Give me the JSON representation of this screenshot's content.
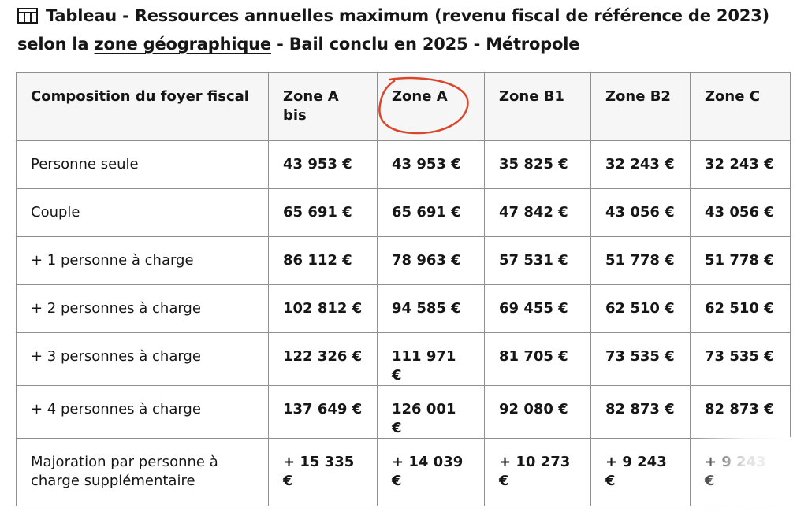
{
  "title": {
    "prefix": "Tableau - Ressources annuelles maximum (revenu fiscal de référence de 2023) selon la",
    "link": "zone géographique",
    "suffix": "- Bail conclu en 2025 - Métropole"
  },
  "table": {
    "headers": [
      "Composition du foyer fiscal",
      "Zone A bis",
      "Zone A",
      "Zone B1",
      "Zone B2",
      "Zone C"
    ],
    "rows": [
      [
        "Personne seule",
        "43 953 €",
        "43 953 €",
        "35 825 €",
        "32 243 €",
        "32 243 €"
      ],
      [
        "Couple",
        "65 691 €",
        "65 691 €",
        "47 842 €",
        "43 056 €",
        "43 056 €"
      ],
      [
        "+ 1 personne à charge",
        "86 112 €",
        "78 963 €",
        "57 531 €",
        "51 778 €",
        "51 778 €"
      ],
      [
        "+ 2 personnes à charge",
        "102 812 €",
        "94 585 €",
        "69 455 €",
        "62 510 €",
        "62 510 €"
      ],
      [
        "+ 3 personnes à charge",
        "122 326 €",
        "111 971 €",
        "81 705 €",
        "73 535 €",
        "73 535 €"
      ],
      [
        "+ 4 personnes à charge",
        "137 649 €",
        "126 001 €",
        "92 080 €",
        "82 873 €",
        "82 873 €"
      ],
      [
        "Majoration par personne à charge supplémentaire",
        "+ 15 335 €",
        "+ 14 039 €",
        "+ 10 273 €",
        "+ 9 243 €",
        "+ 9 243 €"
      ]
    ]
  },
  "annotation": {
    "color": "#d9462b",
    "target": "Zone A"
  },
  "icons": {
    "title_icon": "table-icon"
  }
}
